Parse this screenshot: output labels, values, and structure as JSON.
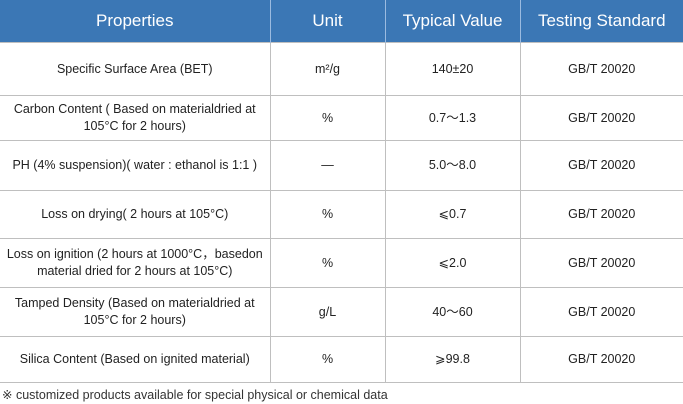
{
  "table": {
    "header": [
      "Properties",
      "Unit",
      "Typical Value",
      "Testing Standard"
    ],
    "rows": [
      [
        [
          "Specific Surface Area (BET)"
        ],
        [
          "m²/g"
        ],
        [
          "140±20"
        ],
        [
          "GB/T 20020"
        ]
      ],
      [
        [
          "Carbon Content ( Based on material",
          "dried at 105°C for 2 hours)"
        ],
        [
          "%"
        ],
        [
          "0.7～1.3"
        ],
        [
          "GB/T 20020"
        ]
      ],
      [
        [
          "PH (4% suspension)",
          "( water : ethanol is 1:1 )"
        ],
        [
          "—"
        ],
        [
          "5.0～8.0"
        ],
        [
          "GB/T 20020"
        ]
      ],
      [
        [
          "Loss on drying( 2 hours at 105°C)"
        ],
        [
          "%"
        ],
        [
          "⩽0.7"
        ],
        [
          "GB/T 20020"
        ]
      ],
      [
        [
          "Loss on ignition (2 hours at 1000°C，based",
          "on material dried for 2 hours at 105°C)"
        ],
        [
          "%"
        ],
        [
          "⩽2.0"
        ],
        [
          "GB/T 20020"
        ]
      ],
      [
        [
          "Tamped Density (Based on material",
          "dried at 105°C for 2 hours)"
        ],
        [
          "g/L"
        ],
        [
          "40～60"
        ],
        [
          "GB/T 20020"
        ]
      ],
      [
        [
          "Silica Content (Based on ignited material)"
        ],
        [
          "%"
        ],
        [
          "⩾99.8"
        ],
        [
          "GB/T 20020"
        ]
      ]
    ]
  },
  "footnote": "※ customized products available for special physical or chemical data"
}
